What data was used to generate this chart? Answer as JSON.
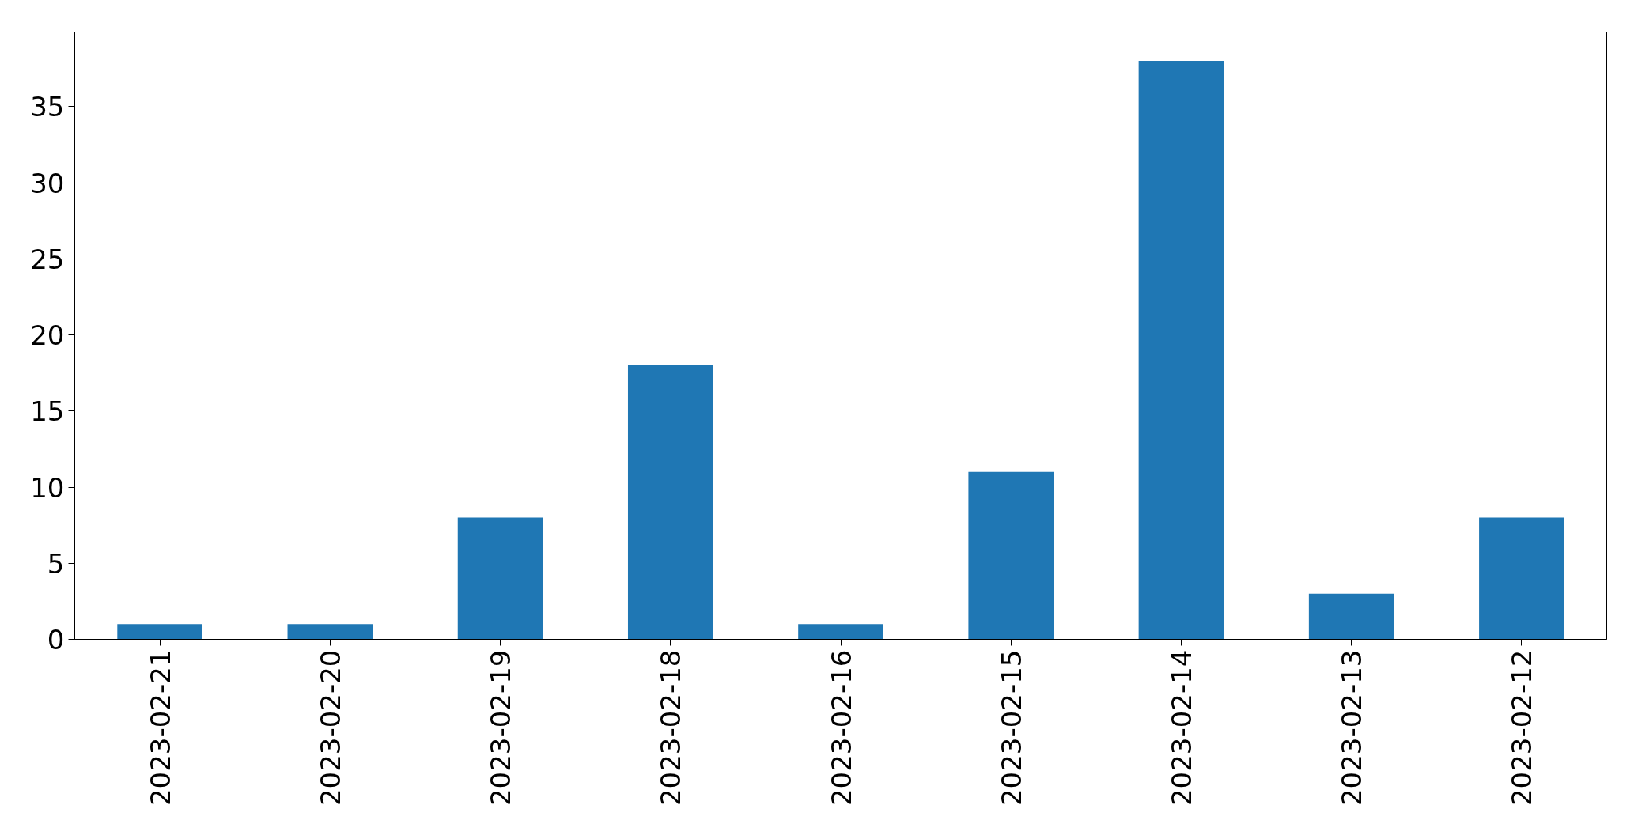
{
  "chart_data": {
    "type": "bar",
    "categories": [
      "2023-02-21",
      "2023-02-20",
      "2023-02-19",
      "2023-02-18",
      "2023-02-16",
      "2023-02-15",
      "2023-02-14",
      "2023-02-13",
      "2023-02-12"
    ],
    "values": [
      1,
      1,
      8,
      18,
      1,
      11,
      38,
      3,
      8
    ],
    "color": "#1f77b4",
    "ylim": [
      0,
      39.9
    ],
    "yticks": [
      0,
      5,
      10,
      15,
      20,
      25,
      30,
      35
    ]
  }
}
